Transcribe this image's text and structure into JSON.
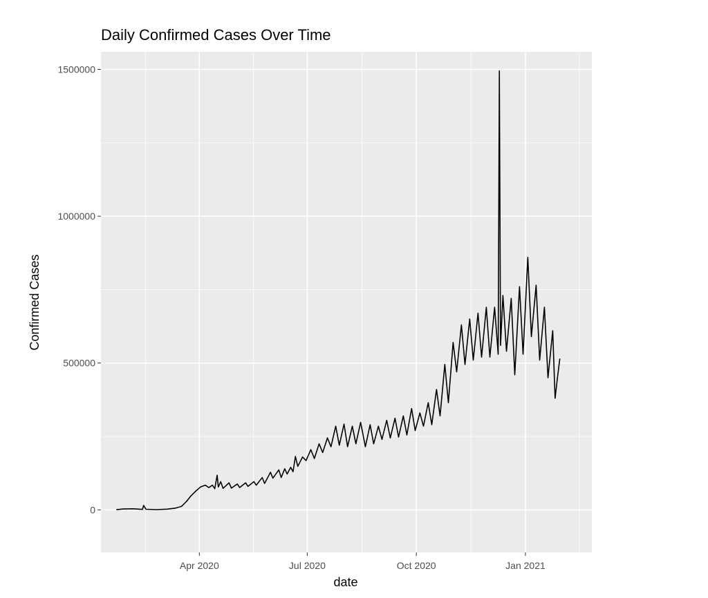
{
  "chart_data": {
    "type": "line",
    "title": "Daily Confirmed Cases Over Time",
    "xlabel": "date",
    "ylabel": "Confirmed Cases",
    "xlim": [
      "2020-01-09",
      "2021-02-26"
    ],
    "ylim": [
      -145000,
      1560000
    ],
    "y_ticks": [
      {
        "value": 0,
        "label": "0"
      },
      {
        "value": 500000,
        "label": "500000"
      },
      {
        "value": 1000000,
        "label": "1000000"
      },
      {
        "value": 1500000,
        "label": "1500000"
      }
    ],
    "x_ticks": [
      {
        "value": "2020-04-01",
        "label": "Apr 2020"
      },
      {
        "value": "2020-07-01",
        "label": "Jul 2020"
      },
      {
        "value": "2020-10-01",
        "label": "Oct 2020"
      },
      {
        "value": "2021-01-01",
        "label": "Jan 2021"
      }
    ],
    "grid": true,
    "legend": "none",
    "series": [
      {
        "color": "#000000",
        "points": [
          [
            "2020-01-22",
            600
          ],
          [
            "2020-01-28",
            3000
          ],
          [
            "2020-02-05",
            3700
          ],
          [
            "2020-02-13",
            1500
          ],
          [
            "2020-02-14",
            15000
          ],
          [
            "2020-02-16",
            2000
          ],
          [
            "2020-02-25",
            800
          ],
          [
            "2020-03-05",
            2500
          ],
          [
            "2020-03-12",
            6000
          ],
          [
            "2020-03-17",
            12000
          ],
          [
            "2020-03-21",
            28000
          ],
          [
            "2020-03-25",
            48000
          ],
          [
            "2020-03-29",
            64000
          ],
          [
            "2020-04-02",
            78000
          ],
          [
            "2020-04-06",
            84000
          ],
          [
            "2020-04-09",
            76000
          ],
          [
            "2020-04-12",
            84000
          ],
          [
            "2020-04-14",
            72000
          ],
          [
            "2020-04-16",
            118000
          ],
          [
            "2020-04-17",
            78000
          ],
          [
            "2020-04-19",
            96000
          ],
          [
            "2020-04-21",
            73000
          ],
          [
            "2020-04-26",
            92000
          ],
          [
            "2020-04-28",
            74000
          ],
          [
            "2020-05-03",
            88000
          ],
          [
            "2020-05-05",
            76000
          ],
          [
            "2020-05-10",
            92000
          ],
          [
            "2020-05-12",
            80000
          ],
          [
            "2020-05-17",
            96000
          ],
          [
            "2020-05-19",
            84000
          ],
          [
            "2020-05-24",
            110000
          ],
          [
            "2020-05-26",
            90000
          ],
          [
            "2020-05-31",
            128000
          ],
          [
            "2020-06-02",
            108000
          ],
          [
            "2020-06-07",
            136000
          ],
          [
            "2020-06-09",
            110000
          ],
          [
            "2020-06-12",
            140000
          ],
          [
            "2020-06-14",
            122000
          ],
          [
            "2020-06-17",
            145000
          ],
          [
            "2020-06-19",
            130000
          ],
          [
            "2020-06-21",
            182000
          ],
          [
            "2020-06-23",
            148000
          ],
          [
            "2020-06-27",
            180000
          ],
          [
            "2020-06-30",
            168000
          ],
          [
            "2020-07-04",
            205000
          ],
          [
            "2020-07-07",
            175000
          ],
          [
            "2020-07-11",
            225000
          ],
          [
            "2020-07-14",
            195000
          ],
          [
            "2020-07-18",
            245000
          ],
          [
            "2020-07-21",
            215000
          ],
          [
            "2020-07-25",
            285000
          ],
          [
            "2020-07-28",
            220000
          ],
          [
            "2020-08-01",
            292000
          ],
          [
            "2020-08-04",
            215000
          ],
          [
            "2020-08-08",
            285000
          ],
          [
            "2020-08-11",
            225000
          ],
          [
            "2020-08-15",
            298000
          ],
          [
            "2020-08-19",
            215000
          ],
          [
            "2020-08-23",
            290000
          ],
          [
            "2020-08-26",
            225000
          ],
          [
            "2020-08-30",
            285000
          ],
          [
            "2020-09-02",
            240000
          ],
          [
            "2020-09-06",
            305000
          ],
          [
            "2020-09-09",
            245000
          ],
          [
            "2020-09-13",
            312000
          ],
          [
            "2020-09-16",
            248000
          ],
          [
            "2020-09-20",
            320000
          ],
          [
            "2020-09-23",
            255000
          ],
          [
            "2020-09-27",
            345000
          ],
          [
            "2020-09-30",
            270000
          ],
          [
            "2020-10-04",
            330000
          ],
          [
            "2020-10-07",
            285000
          ],
          [
            "2020-10-11",
            365000
          ],
          [
            "2020-10-14",
            290000
          ],
          [
            "2020-10-18",
            410000
          ],
          [
            "2020-10-21",
            320000
          ],
          [
            "2020-10-25",
            495000
          ],
          [
            "2020-10-28",
            365000
          ],
          [
            "2020-11-01",
            570000
          ],
          [
            "2020-11-04",
            470000
          ],
          [
            "2020-11-08",
            630000
          ],
          [
            "2020-11-11",
            495000
          ],
          [
            "2020-11-15",
            650000
          ],
          [
            "2020-11-18",
            510000
          ],
          [
            "2020-11-22",
            670000
          ],
          [
            "2020-11-25",
            520000
          ],
          [
            "2020-11-29",
            690000
          ],
          [
            "2020-12-02",
            520000
          ],
          [
            "2020-12-06",
            690000
          ],
          [
            "2020-12-09",
            530000
          ],
          [
            "2020-12-10",
            1495000
          ],
          [
            "2020-12-11",
            560000
          ],
          [
            "2020-12-13",
            730000
          ],
          [
            "2020-12-16",
            540000
          ],
          [
            "2020-12-20",
            720000
          ],
          [
            "2020-12-23",
            460000
          ],
          [
            "2020-12-27",
            760000
          ],
          [
            "2020-12-30",
            530000
          ],
          [
            "2021-01-03",
            860000
          ],
          [
            "2021-01-06",
            590000
          ],
          [
            "2021-01-10",
            765000
          ],
          [
            "2021-01-13",
            510000
          ],
          [
            "2021-01-17",
            690000
          ],
          [
            "2021-01-20",
            450000
          ],
          [
            "2021-01-24",
            610000
          ],
          [
            "2021-01-26",
            380000
          ],
          [
            "2021-01-28",
            450000
          ],
          [
            "2021-01-30",
            515000
          ]
        ]
      }
    ]
  }
}
